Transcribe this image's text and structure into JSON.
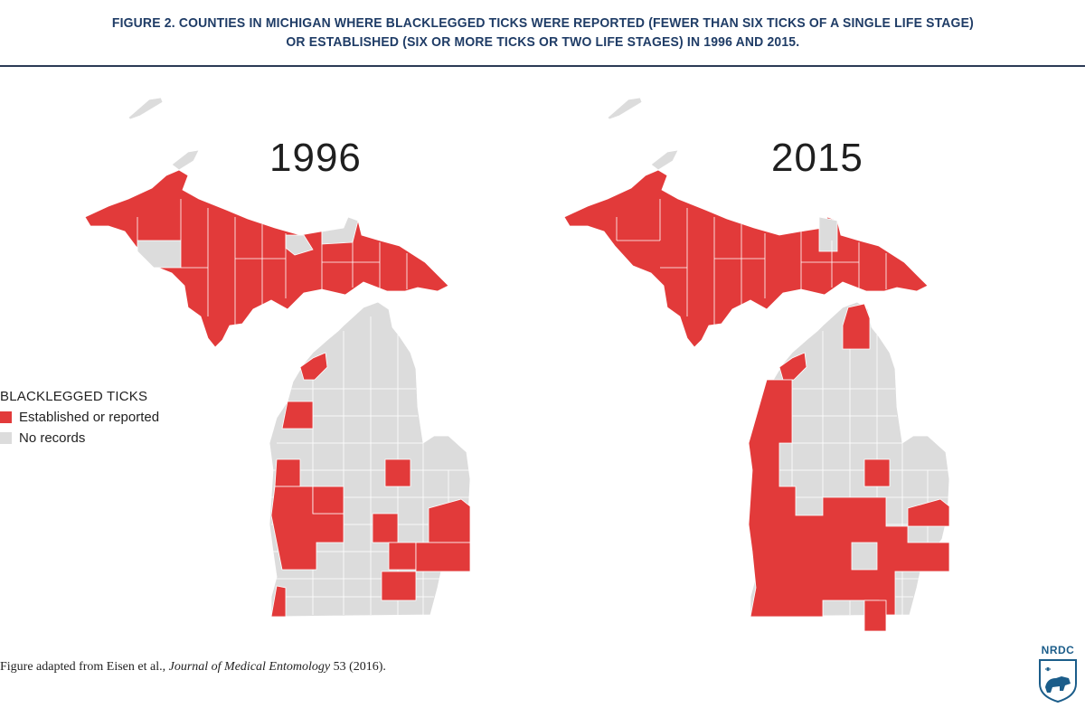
{
  "figure": {
    "title_line1": "FIGURE 2. COUNTIES IN MICHIGAN WHERE BLACKLEGGED TICKS WERE REPORTED (FEWER THAN SIX TICKS OF A SINGLE LIFE STAGE)",
    "title_line2": "OR ESTABLISHED (SIX OR MORE TICKS OR TWO LIFE STAGES) IN 1996 AND 2015."
  },
  "maps": [
    {
      "year": "1996",
      "status": {
        "established_or_reported": [
          "western Upper Peninsula",
          "central Upper Peninsula",
          "eastern Upper Peninsula",
          "Leelanau area",
          "Mason area",
          "Kalamazoo area",
          "Allegan area",
          "Berrien area",
          "Midland area",
          "Ingham area",
          "Oakland area",
          "Washtenaw area"
        ]
      }
    },
    {
      "year": "2015",
      "status": {
        "established_or_reported": [
          "Upper Peninsula (most counties)",
          "Emmet area",
          "Lake Michigan shoreline counties",
          "southwest counties",
          "Midland area",
          "Ingham area",
          "Oakland area",
          "Washtenaw area",
          "Hillsdale area"
        ]
      }
    }
  ],
  "legend": {
    "title": "BLACKLEGGED TICKS",
    "items": [
      {
        "label": "Established or reported",
        "color": "#e23a3a"
      },
      {
        "label": "No records",
        "color": "#dcdcdc"
      }
    ]
  },
  "colors": {
    "established": "#e23a3a",
    "none": "#dcdcdc",
    "border": "#ffffff"
  },
  "footer": {
    "prefix": "Figure adapted from Eisen et al., ",
    "journal": "Journal of Medical Entomology",
    "suffix": " 53 (2016)."
  },
  "logo": {
    "text": "NRDC",
    "icon": "bear-shield-icon"
  }
}
